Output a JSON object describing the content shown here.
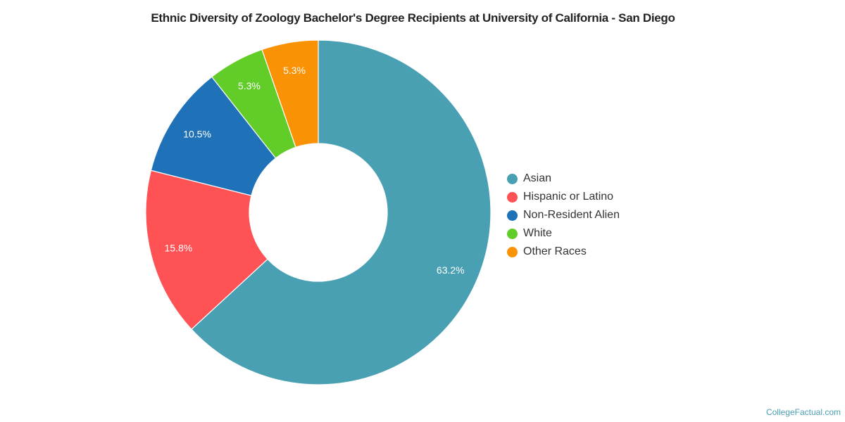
{
  "title": "Ethnic Diversity of Zoology Bachelor's Degree Recipients at University of California - San Diego",
  "credit": "CollegeFactual.com",
  "chart_data": {
    "type": "pie",
    "variant": "donut",
    "title": "Ethnic Diversity of Zoology Bachelor's Degree Recipients at University of California - San Diego",
    "categories": [
      "Asian",
      "Hispanic or Latino",
      "Non-Resident Alien",
      "White",
      "Other Races"
    ],
    "values": [
      63.2,
      15.8,
      10.5,
      5.3,
      5.3
    ],
    "labels": [
      "63.2%",
      "15.8%",
      "10.5%",
      "5.3%",
      "5.3%"
    ],
    "colors": [
      "#4aa0b3",
      "#fe5255",
      "#1f72b8",
      "#62cd28",
      "#fa9206"
    ],
    "legend_position": "right"
  },
  "legend": [
    {
      "label": "Asian",
      "color": "#4aa0b3"
    },
    {
      "label": "Hispanic or Latino",
      "color": "#fe5255"
    },
    {
      "label": "Non-Resident Alien",
      "color": "#1f72b8"
    },
    {
      "label": "White",
      "color": "#62cd28"
    },
    {
      "label": "Other Races",
      "color": "#fa9206"
    }
  ]
}
